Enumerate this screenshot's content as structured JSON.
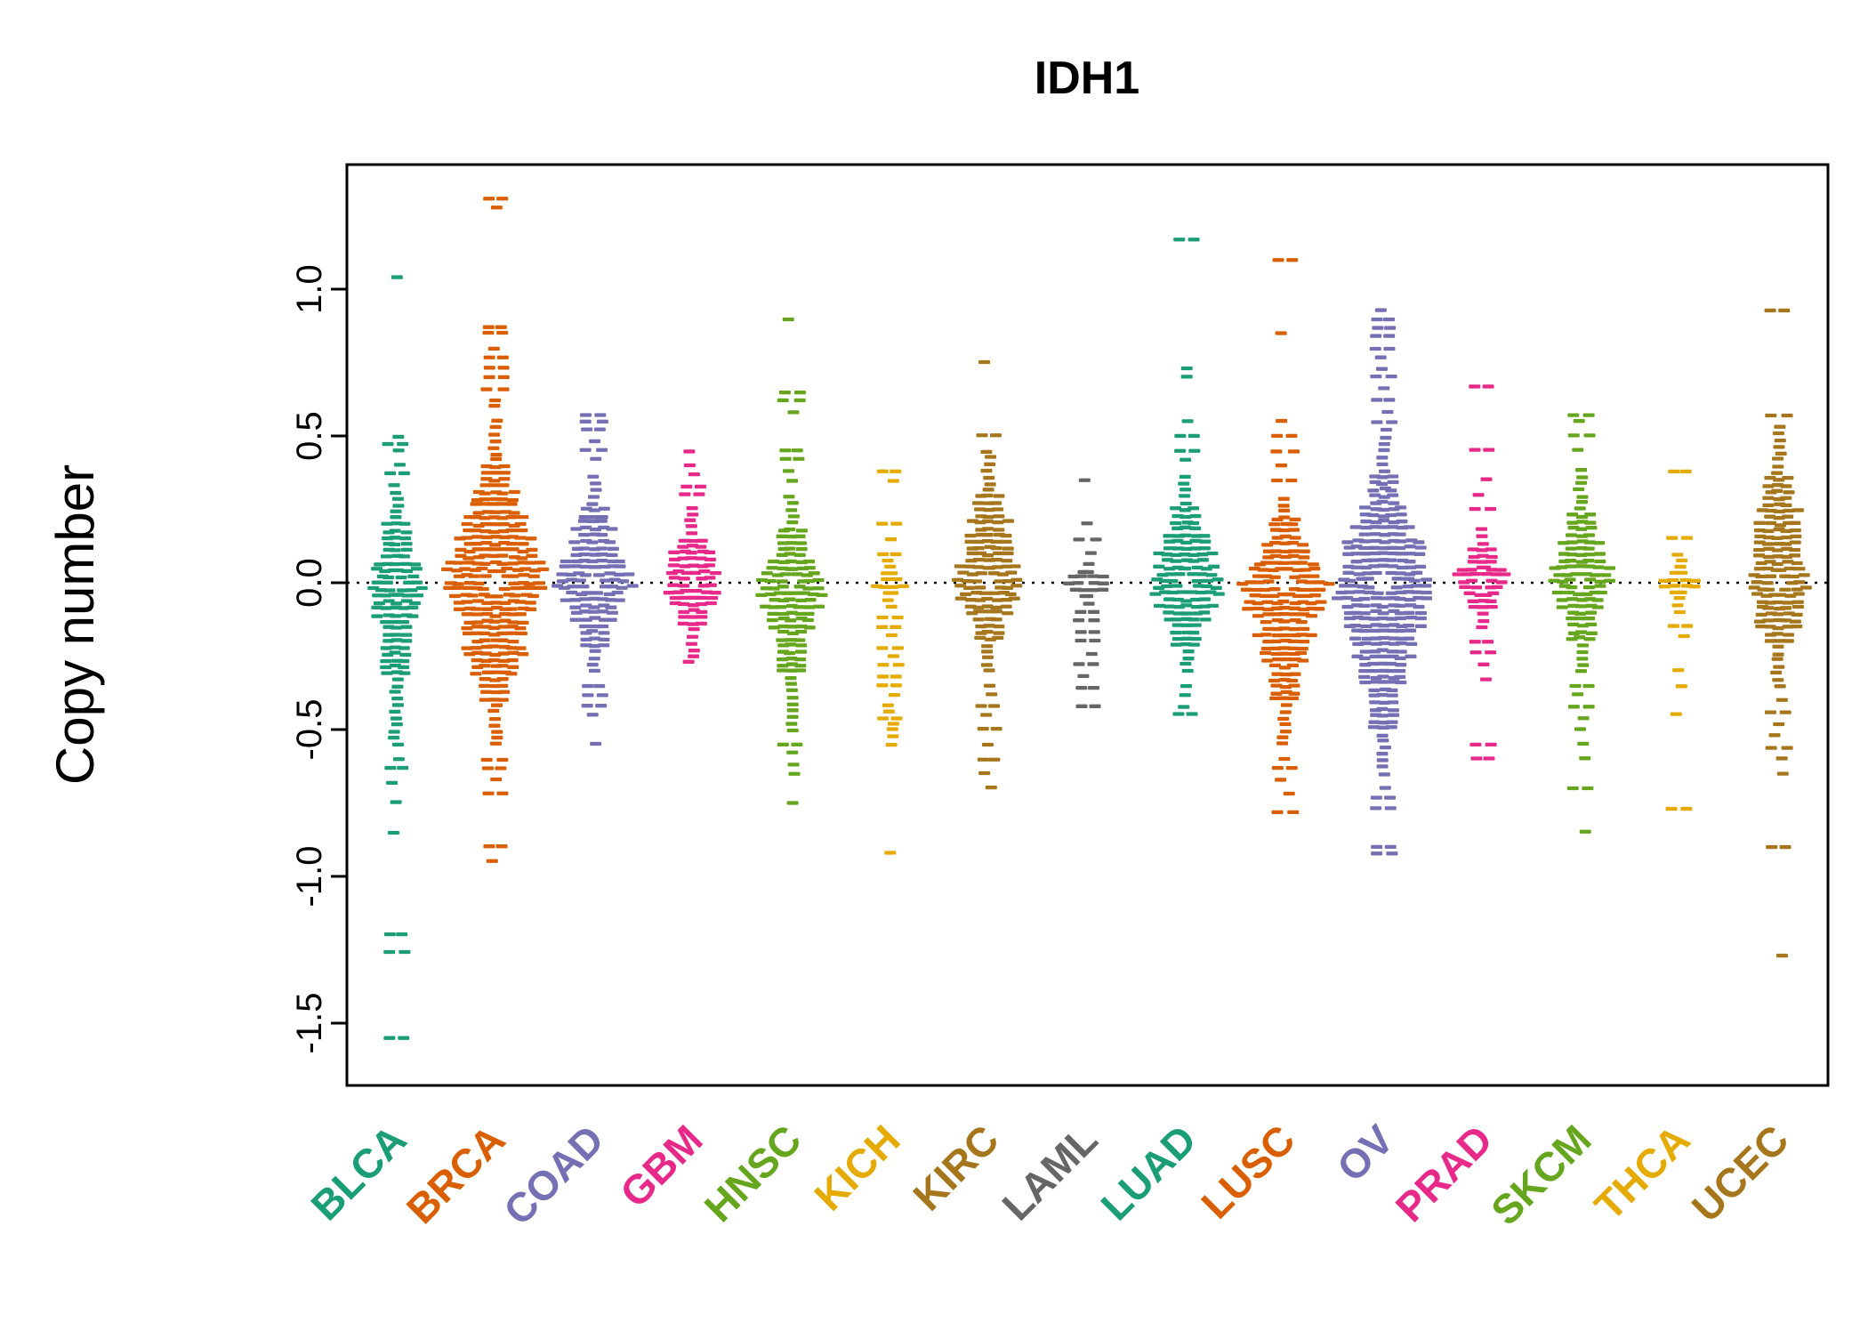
{
  "chart_data": {
    "type": "scatter",
    "subtype": "beeswarm-violin",
    "title": "IDH1",
    "ylabel": "Copy number",
    "xlabel": "",
    "ylim": [
      -1.73,
      1.41
    ],
    "yticks": [
      1.0,
      0.5,
      0.0,
      -0.5,
      -1.0,
      -1.5
    ],
    "ytick_labels": [
      "1.0",
      "0.5",
      "0.0",
      "-0.5",
      "-1.0",
      "-1.5"
    ],
    "zero_line": 0.0,
    "grid": false,
    "legend": "none",
    "categories": [
      "BLCA",
      "BRCA",
      "COAD",
      "GBM",
      "HNSC",
      "KICH",
      "KIRC",
      "LAML",
      "LUAD",
      "LUSC",
      "OV",
      "PRAD",
      "SKCM",
      "THCA",
      "UCEC"
    ],
    "series": [
      {
        "label": "BLCA",
        "color": "#1B9E77",
        "core": {
          "min": -0.55,
          "max": 0.33
        },
        "width": 0.55,
        "outliers": [
          1.04,
          0.5,
          0.47,
          0.45,
          0.4,
          0.37,
          -0.6,
          -0.63,
          -0.68,
          -0.75,
          -0.85,
          -1.2,
          -1.26,
          -1.55
        ]
      },
      {
        "label": "BRCA",
        "color": "#D95F02",
        "core": {
          "min": -0.55,
          "max": 0.55
        },
        "width": 1.0,
        "outliers": [
          1.31,
          1.28,
          0.87,
          0.85,
          0.8,
          0.77,
          0.73,
          0.7,
          0.66,
          0.62,
          0.6,
          -0.6,
          -0.63,
          -0.67,
          -0.72,
          -0.9,
          -0.95
        ]
      },
      {
        "label": "COAD",
        "color": "#7570B3",
        "core": {
          "min": -0.3,
          "max": 0.38
        },
        "width": 0.75,
        "outliers": [
          0.57,
          0.55,
          0.52,
          0.48,
          0.45,
          0.42,
          -0.35,
          -0.38,
          -0.42,
          -0.45,
          -0.55
        ]
      },
      {
        "label": "GBM",
        "color": "#E7298A",
        "core": {
          "min": -0.25,
          "max": 0.27
        },
        "width": 0.6,
        "outliers": [
          0.45,
          0.4,
          0.37,
          0.33,
          0.3,
          -0.27
        ]
      },
      {
        "label": "HNSC",
        "color": "#66A61E",
        "core": {
          "min": -0.5,
          "max": 0.3
        },
        "width": 0.6,
        "outliers": [
          0.9,
          0.65,
          0.62,
          0.58,
          0.45,
          0.42,
          0.38,
          0.35,
          -0.55,
          -0.58,
          -0.62,
          -0.65,
          -0.75
        ]
      },
      {
        "label": "KICH",
        "color": "#E6AB02",
        "core": {
          "min": -0.08,
          "max": 0.08
        },
        "width": 0.3,
        "outliers": [
          0.38,
          0.35,
          0.2,
          0.15,
          0.1,
          -0.12,
          -0.15,
          -0.18,
          -0.22,
          -0.25,
          -0.28,
          -0.32,
          -0.35,
          -0.38,
          -0.42,
          -0.44,
          -0.46,
          -0.48,
          -0.5,
          -0.52,
          -0.55,
          -0.92
        ]
      },
      {
        "label": "KIRC",
        "color": "#A6761D",
        "core": {
          "min": -0.3,
          "max": 0.45
        },
        "width": 0.7,
        "outliers": [
          0.75,
          0.5,
          -0.35,
          -0.38,
          -0.42,
          -0.45,
          -0.5,
          -0.55,
          -0.6,
          -0.65,
          -0.7
        ]
      },
      {
        "label": "LAML",
        "color": "#666666",
        "core": {
          "min": -0.07,
          "max": 0.07
        },
        "width": 0.45,
        "outliers": [
          0.35,
          0.2,
          0.15,
          0.1,
          -0.1,
          -0.13,
          -0.17,
          -0.2,
          -0.24,
          -0.28,
          -0.32,
          -0.36,
          -0.42
        ]
      },
      {
        "label": "LUAD",
        "color": "#1B9E77",
        "core": {
          "min": -0.3,
          "max": 0.38
        },
        "width": 0.75,
        "outliers": [
          1.17,
          0.73,
          0.7,
          0.55,
          0.5,
          0.45,
          0.42,
          -0.35,
          -0.38,
          -0.42,
          -0.45
        ]
      },
      {
        "label": "LUSC",
        "color": "#D95F02",
        "core": {
          "min": -0.55,
          "max": 0.3
        },
        "width": 0.85,
        "outliers": [
          1.1,
          0.85,
          0.55,
          0.5,
          0.45,
          0.4,
          0.35,
          -0.6,
          -0.63,
          -0.67,
          -0.72,
          -0.78
        ]
      },
      {
        "label": "OV",
        "color": "#7570B3",
        "core": {
          "min": -0.65,
          "max": 0.5
        },
        "width": 1.0,
        "outliers": [
          0.93,
          0.9,
          0.87,
          0.84,
          0.8,
          0.77,
          0.73,
          0.7,
          0.66,
          0.62,
          0.58,
          0.55,
          0.52,
          -0.7,
          -0.73,
          -0.77,
          -0.9,
          -0.92
        ]
      },
      {
        "label": "PRAD",
        "color": "#E7298A",
        "core": {
          "min": -0.15,
          "max": 0.2
        },
        "width": 0.55,
        "outliers": [
          0.67,
          0.45,
          0.35,
          0.3,
          0.25,
          -0.2,
          -0.24,
          -0.28,
          -0.33,
          -0.55,
          -0.6
        ]
      },
      {
        "label": "SKCM",
        "color": "#66A61E",
        "core": {
          "min": -0.3,
          "max": 0.4
        },
        "width": 0.6,
        "outliers": [
          0.57,
          0.55,
          0.5,
          0.45,
          -0.35,
          -0.38,
          -0.42,
          -0.46,
          -0.5,
          -0.55,
          -0.6,
          -0.7,
          -0.85
        ]
      },
      {
        "label": "THCA",
        "color": "#E6AB02",
        "core": {
          "min": -0.1,
          "max": 0.1
        },
        "width": 0.4,
        "outliers": [
          0.38,
          0.15,
          -0.15,
          -0.18,
          -0.3,
          -0.35,
          -0.45,
          -0.77
        ]
      },
      {
        "label": "UCEC",
        "color": "#A6761D",
        "core": {
          "min": -0.35,
          "max": 0.55
        },
        "width": 0.65,
        "outliers": [
          0.93,
          0.57,
          -0.4,
          -0.44,
          -0.48,
          -0.52,
          -0.56,
          -0.6,
          -0.65,
          -0.9,
          -1.27
        ]
      }
    ]
  }
}
